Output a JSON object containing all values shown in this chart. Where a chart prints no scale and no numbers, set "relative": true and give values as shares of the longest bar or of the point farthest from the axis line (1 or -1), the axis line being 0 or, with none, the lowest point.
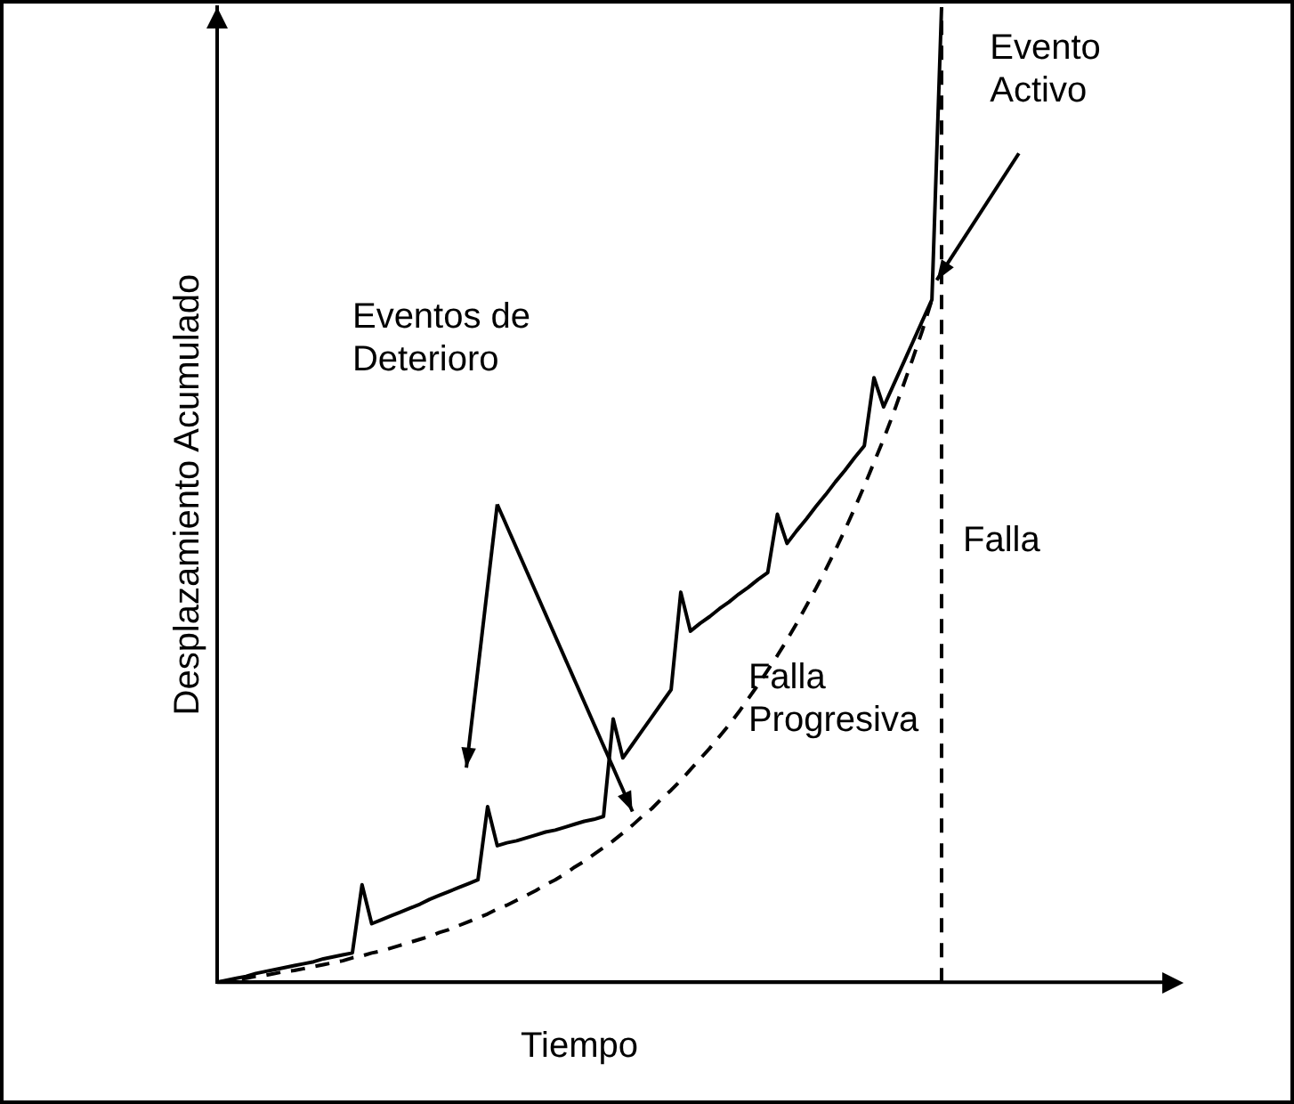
{
  "chart_data": {
    "type": "line",
    "relative": true,
    "xlabel": "Tiempo",
    "ylabel": "Desplazamiento Acumulado",
    "grid": false,
    "legend": false,
    "marker": "none",
    "categories": [
      null,
      null,
      null,
      null,
      null,
      null,
      null,
      null,
      null,
      null,
      null,
      null,
      null,
      null,
      null,
      null,
      null,
      null,
      null,
      null,
      null,
      null,
      null,
      null,
      null,
      null,
      null,
      null,
      null,
      null,
      null,
      null,
      null,
      null,
      null,
      null,
      null,
      null,
      null,
      null,
      null,
      null,
      null,
      null,
      null,
      null,
      null,
      null,
      null,
      null,
      null,
      null,
      null,
      null,
      null,
      null,
      null,
      null,
      null,
      null,
      null,
      null,
      null,
      null,
      null,
      null,
      null,
      null,
      null,
      null,
      null,
      null,
      null,
      null,
      null,
      null
    ],
    "series": [
      {
        "color": "#000000",
        "line_style": "solid",
        "values": [
          0,
          0.002,
          0.004,
          0.006,
          0.009,
          0.011,
          0.013,
          0.015,
          0.017,
          0.019,
          0.021,
          0.024,
          0.026,
          0.028,
          0.03,
          0.1,
          0.06,
          0.064,
          0.068,
          0.072,
          0.076,
          0.08,
          0.085,
          0.089,
          0.093,
          0.097,
          0.101,
          0.105,
          0.18,
          0.14,
          0.143,
          0.145,
          0.148,
          0.151,
          0.154,
          0.156,
          0.159,
          0.162,
          0.165,
          0.167,
          0.17,
          0.27,
          0.23,
          0.244,
          0.258,
          0.272,
          0.286,
          0.3,
          0.4,
          0.36,
          0.368,
          0.375,
          0.383,
          0.39,
          0.398,
          0.405,
          0.413,
          0.42,
          0.48,
          0.45,
          0.463,
          0.475,
          0.488,
          0.5,
          0.513,
          0.525,
          0.538,
          0.55,
          0.62,
          0.59,
          0.612,
          0.634,
          0.656,
          0.678,
          0.7,
          1
        ]
      },
      {
        "color": "#000000",
        "line_style": "dashed",
        "values": [
          0,
          0.001,
          0.003,
          0.004,
          0.006,
          0.007,
          0.009,
          0.011,
          0.012,
          0.014,
          0.016,
          0.018,
          0.02,
          0.022,
          0.025,
          0.027,
          0.03,
          0.032,
          0.035,
          0.038,
          0.041,
          0.044,
          0.047,
          0.051,
          0.054,
          0.058,
          0.062,
          0.066,
          0.07,
          0.075,
          0.079,
          0.084,
          0.089,
          0.094,
          0.1,
          0.105,
          0.111,
          0.118,
          0.124,
          0.131,
          0.138,
          0.145,
          0.153,
          0.161,
          0.17,
          0.178,
          0.188,
          0.197,
          0.207,
          0.218,
          0.229,
          0.24,
          0.252,
          0.264,
          0.277,
          0.291,
          0.305,
          0.32,
          0.335,
          0.351,
          0.368,
          0.386,
          0.404,
          0.423,
          0.443,
          0.464,
          0.486,
          0.509,
          0.533,
          0.557,
          0.583,
          0.611,
          0.639,
          0.668,
          0.7,
          null
        ]
      }
    ],
    "ref_lines": [
      {
        "axis": "x",
        "label": "Falla",
        "line_style": "dashed",
        "color": "#000000"
      }
    ],
    "annotations": [
      "Evento Activo",
      "Eventos de Deterioro",
      "Falla Progresiva"
    ]
  }
}
